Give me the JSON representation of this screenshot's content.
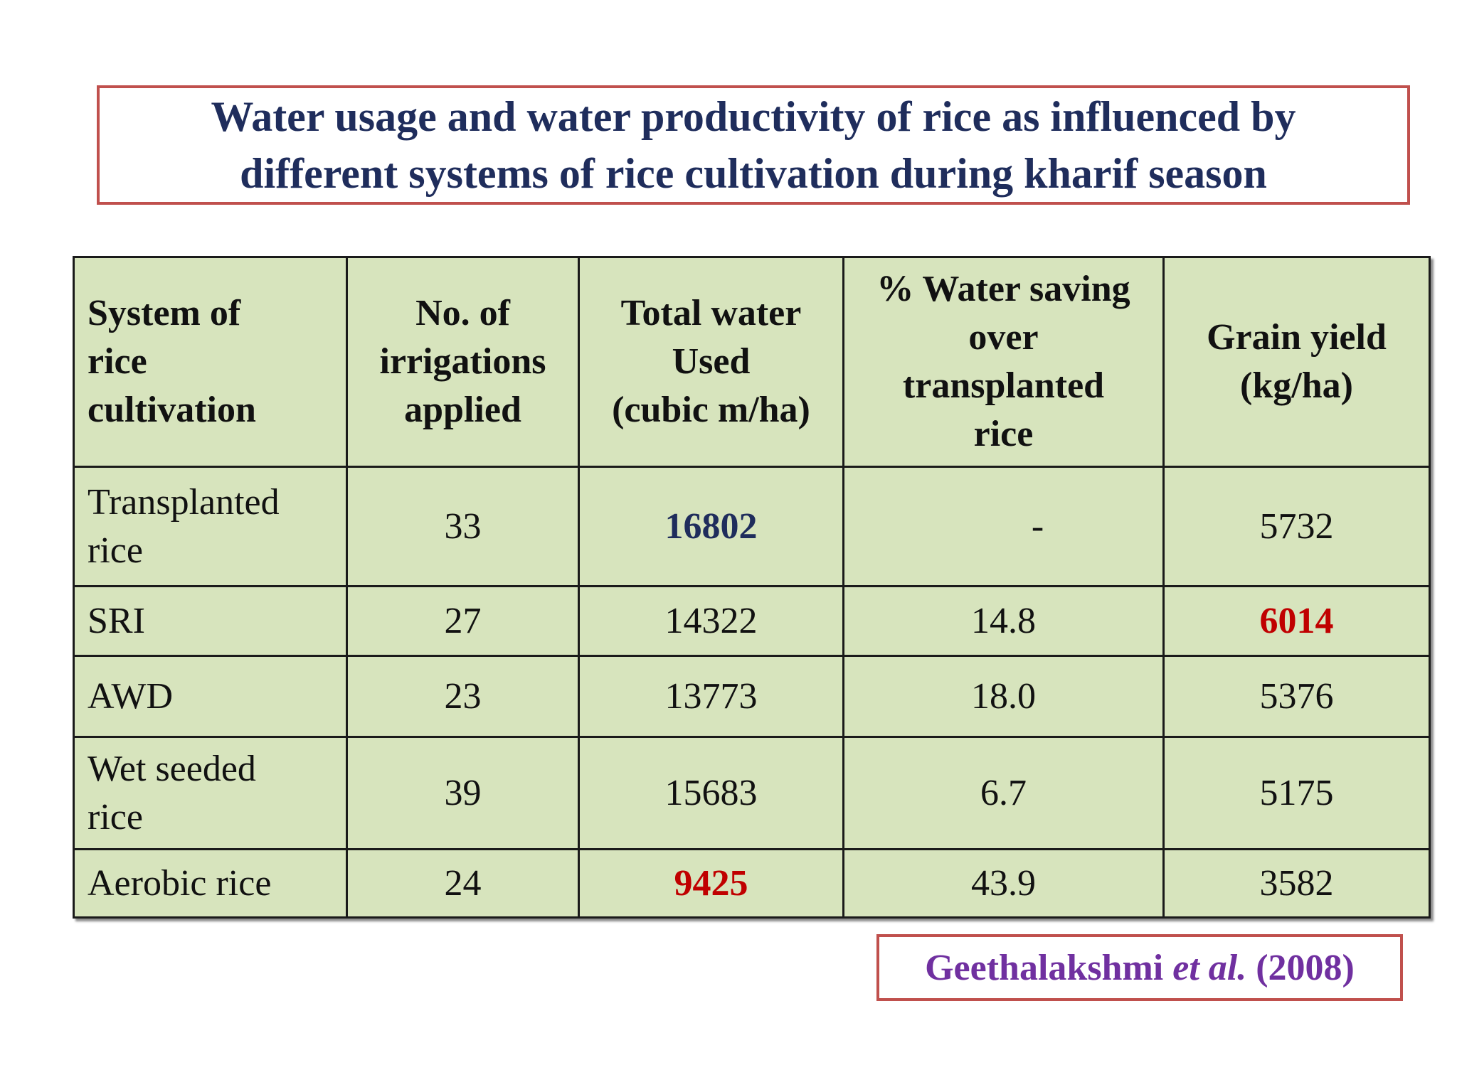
{
  "title": {
    "line1": "Water usage and water productivity of rice as influenced by",
    "line2": "different systems of rice cultivation during kharif season"
  },
  "table": {
    "headers": [
      [
        "System of",
        "rice",
        "cultivation"
      ],
      [
        "No. of",
        "irrigations",
        "applied"
      ],
      [
        "Total water",
        "Used",
        "(cubic m/ha)"
      ],
      [
        "% Water saving",
        "over",
        "transplanted",
        "rice"
      ],
      [
        "Grain yield",
        "(kg/ha)"
      ]
    ],
    "rows": [
      {
        "system": [
          "Transplanted",
          "rice"
        ],
        "irrigations": "33",
        "total_water": "16802",
        "water_saving": "-",
        "grain_yield": "5732"
      },
      {
        "system": [
          "SRI"
        ],
        "irrigations": "27",
        "total_water": "14322",
        "water_saving": "14.8",
        "grain_yield": "6014"
      },
      {
        "system": [
          "AWD"
        ],
        "irrigations": "23",
        "total_water": "13773",
        "water_saving": "18.0",
        "grain_yield": "5376"
      },
      {
        "system": [
          "Wet seeded",
          "rice"
        ],
        "irrigations": "39",
        "total_water": "15683",
        "water_saving": "6.7",
        "grain_yield": "5175"
      },
      {
        "system": [
          "Aerobic rice"
        ],
        "irrigations": "24",
        "total_water": "9425",
        "water_saving": "43.9",
        "grain_yield": "3582"
      }
    ]
  },
  "citation": {
    "author": "Geethalakshmi",
    "etal": "et al.",
    "year": "(2008)"
  },
  "colors": {
    "title_text": "#1f2d5c",
    "box_border": "#c0504d",
    "table_fill": "#d7e4bd",
    "highlight_blue": "#1f2d5c",
    "highlight_red": "#c00000",
    "citation_text": "#7030a0"
  }
}
